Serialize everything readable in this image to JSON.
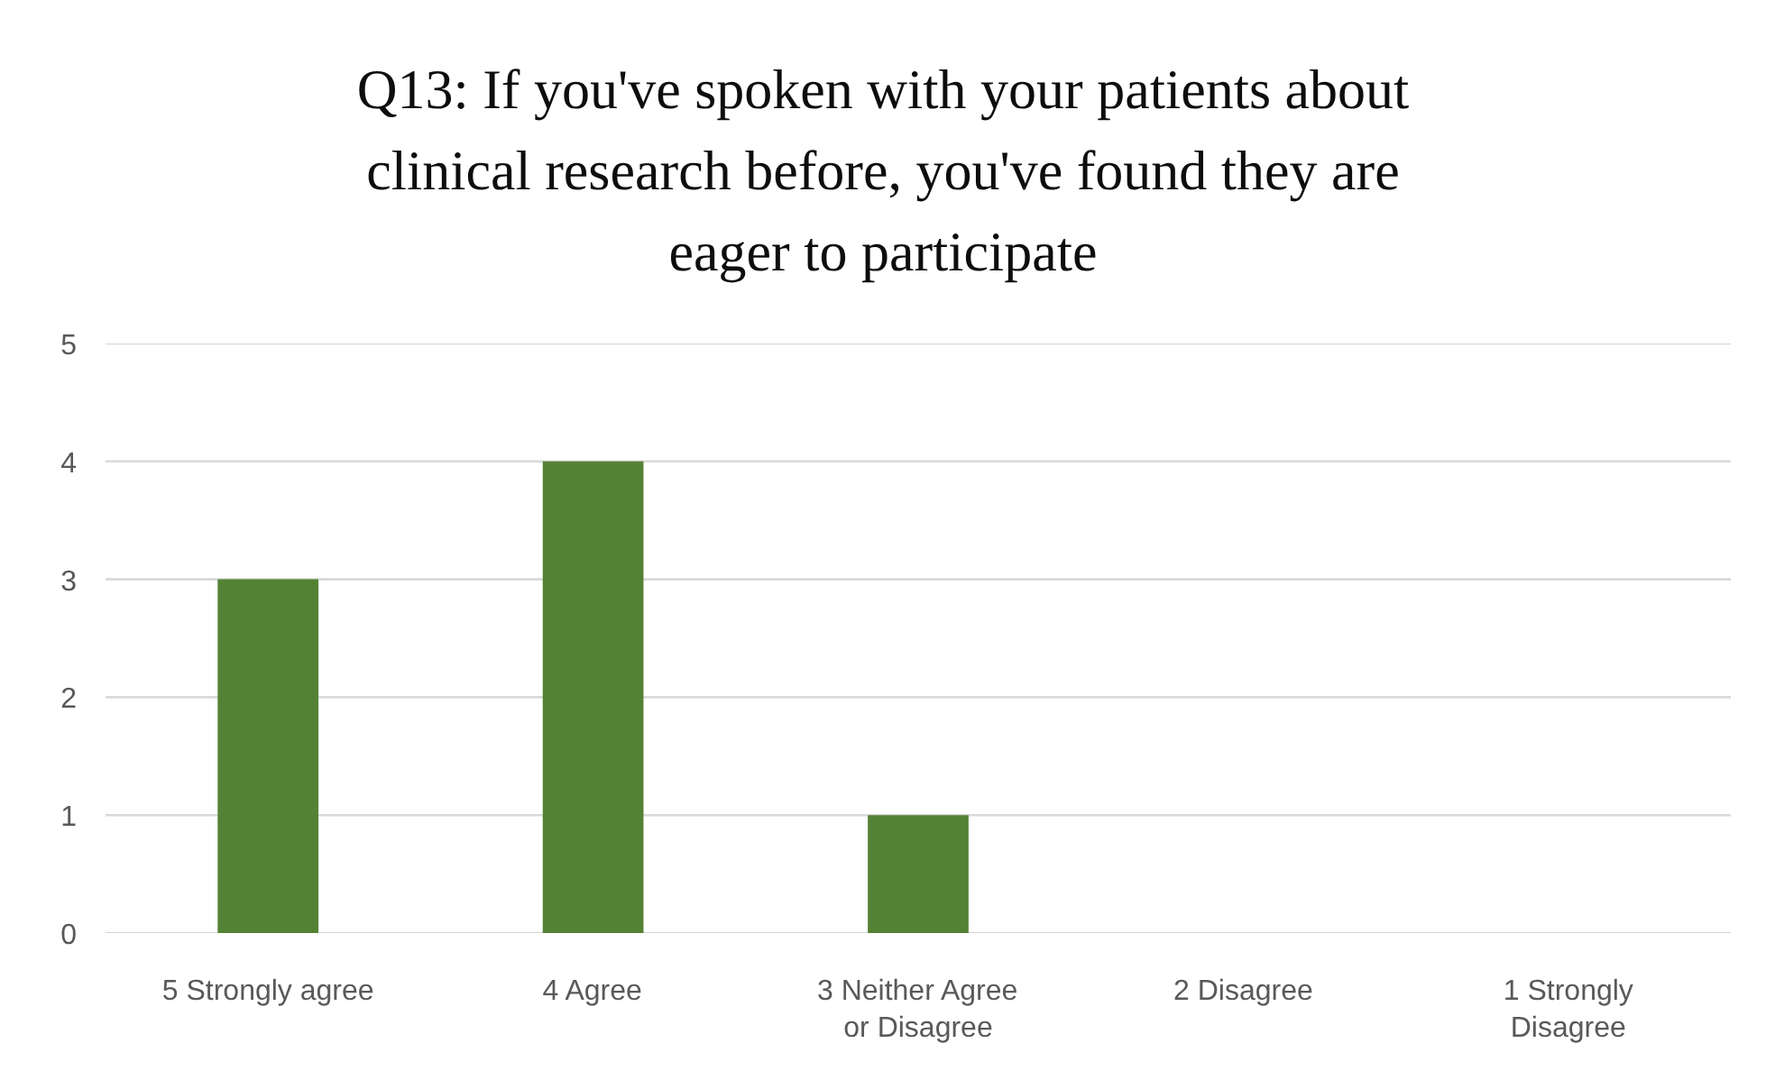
{
  "chart_data": {
    "type": "bar",
    "title": "Q13: If you've spoken with your patients about clinical research before, you've found they are eager to participate",
    "categories": [
      "5 Strongly agree",
      "4 Agree",
      "3 Neither Agree or Disagree",
      "2 Disagree",
      "1 Strongly Disagree"
    ],
    "values": [
      3,
      4,
      1,
      0,
      0
    ],
    "color": "#548235",
    "ylim": [
      0,
      5
    ],
    "yticks": [
      0,
      1,
      2,
      3,
      4,
      5
    ],
    "grid": "y"
  }
}
